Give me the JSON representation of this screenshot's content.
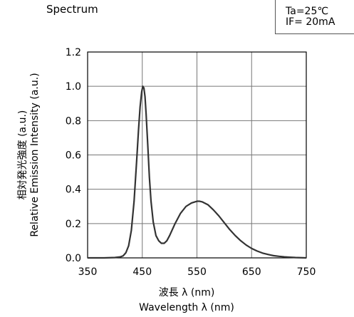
{
  "header": {
    "title": "Spectrum",
    "conditions": [
      "Ta=25℃",
      "IF= 20mA"
    ]
  },
  "chart_data": {
    "type": "line",
    "title": "Spectrum",
    "xlabel_lines": [
      "波長 λ (nm)",
      "Wavelength λ (nm)"
    ],
    "ylabel_lines": [
      "相対発光強度 (a.u.)",
      "Relative Emission Intensity (a.u.)"
    ],
    "xlim": [
      350,
      750
    ],
    "ylim": [
      0,
      1.2
    ],
    "xticks": [
      "350",
      "450",
      "550",
      "650",
      "750"
    ],
    "yticks": [
      "0.0",
      "0.2",
      "0.4",
      "0.6",
      "0.8",
      "1.0",
      "1.2"
    ],
    "grid": true,
    "series": [
      {
        "color": "#333333",
        "x": [
          350,
          380,
          400,
          410,
          415,
          420,
          425,
          430,
          435,
          440,
          443,
          446,
          449,
          451,
          453,
          455,
          457,
          460,
          463,
          466,
          470,
          475,
          480,
          485,
          490,
          495,
          500,
          510,
          520,
          530,
          540,
          550,
          555,
          560,
          570,
          580,
          590,
          600,
          610,
          620,
          630,
          640,
          650,
          660,
          670,
          680,
          690,
          700,
          710,
          720,
          730,
          740,
          750
        ],
        "y": [
          0,
          0,
          0.002,
          0.006,
          0.012,
          0.03,
          0.07,
          0.16,
          0.33,
          0.58,
          0.74,
          0.88,
          0.97,
          1.0,
          0.99,
          0.94,
          0.84,
          0.66,
          0.47,
          0.33,
          0.21,
          0.13,
          0.1,
          0.085,
          0.085,
          0.1,
          0.13,
          0.2,
          0.26,
          0.3,
          0.32,
          0.33,
          0.33,
          0.326,
          0.31,
          0.28,
          0.245,
          0.205,
          0.165,
          0.13,
          0.1,
          0.075,
          0.055,
          0.04,
          0.028,
          0.02,
          0.013,
          0.009,
          0.006,
          0.004,
          0.002,
          0.001,
          0.0
        ]
      }
    ]
  }
}
